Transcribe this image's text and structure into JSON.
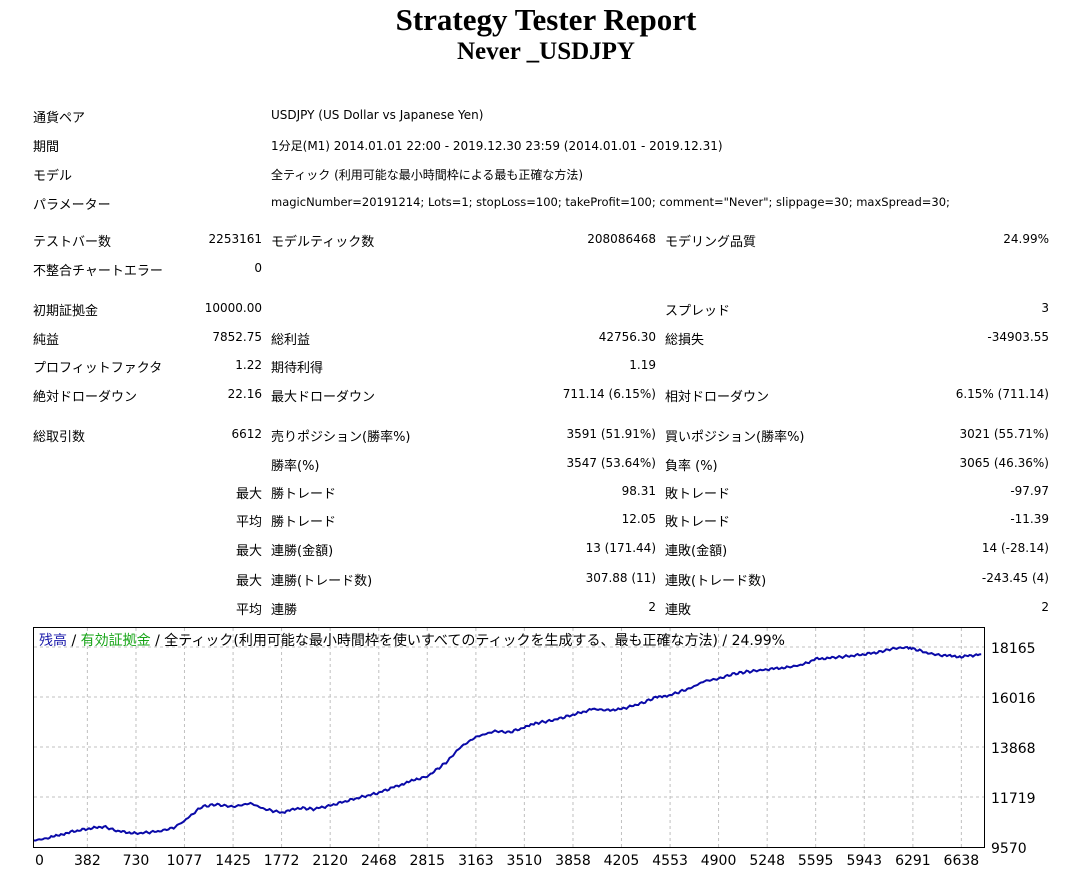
{
  "report": {
    "title": "Strategy Tester Report",
    "subtitle": "Never _USDJPY"
  },
  "info": {
    "symbol_label": "通貨ペア",
    "symbol_value": "USDJPY (US Dollar vs Japanese Yen)",
    "period_label": "期間",
    "period_value": "1分足(M1) 2014.01.01 22:00 - 2019.12.30 23:59 (2014.01.01 - 2019.12.31)",
    "model_label": "モデル",
    "model_value": "全ティック (利用可能な最小時間枠による最も正確な方法)",
    "params_label": "パラメーター",
    "params_value": "magicNumber=20191214; Lots=1; stopLoss=100; takeProfit=100; comment=\"Never\"; slippage=30; maxSpread=30;"
  },
  "stats": {
    "bars_label": "テストバー数",
    "bars_value": "2253161",
    "ticks_label": "モデルティック数",
    "ticks_value": "208086468",
    "quality_label": "モデリング品質",
    "quality_value": "24.99%",
    "mismatch_label": "不整合チャートエラー",
    "mismatch_value": "0",
    "deposit_label": "初期証拠金",
    "deposit_value": "10000.00",
    "spread_label": "スプレッド",
    "spread_value": "3",
    "netprofit_label": "純益",
    "netprofit_value": "7852.75",
    "grossprofit_label": "総利益",
    "grossprofit_value": "42756.30",
    "grossloss_label": "総損失",
    "grossloss_value": "-34903.55",
    "pf_label": "プロフィットファクタ",
    "pf_value": "1.22",
    "payoff_label": "期待利得",
    "payoff_value": "1.19",
    "absdd_label": "絶対ドローダウン",
    "absdd_value": "22.16",
    "maxdd_label": "最大ドローダウン",
    "maxdd_value": "711.14 (6.15%)",
    "reldd_label": "相対ドローダウン",
    "reldd_value": "6.15% (711.14)",
    "trades_label": "総取引数",
    "trades_value": "6612",
    "short_label": "売りポジション(勝率%)",
    "short_value": "3591 (51.91%)",
    "long_label": "買いポジション(勝率%)",
    "long_value": "3021 (55.71%)",
    "winrate_label": "勝率(%)",
    "winrate_value": "3547 (53.64%)",
    "lossrate_label": "負率 (%)",
    "lossrate_value": "3065 (46.36%)",
    "max_label": "最大",
    "avg_label": "平均",
    "largest_win_label": "勝トレード",
    "largest_win_value": "98.31",
    "largest_loss_label": "敗トレード",
    "largest_loss_value": "-97.97",
    "avg_win_label": "勝トレード",
    "avg_win_value": "12.05",
    "avg_loss_label": "敗トレード",
    "avg_loss_value": "-11.39",
    "maxconswin_amt_label": "連勝(金額)",
    "maxconswin_amt_value": "13 (171.44)",
    "maxconsloss_amt_label": "連敗(金額)",
    "maxconsloss_amt_value": "14 (-28.14)",
    "maxconswin_cnt_label": "連勝(トレード数)",
    "maxconswin_cnt_value": "307.88 (11)",
    "maxconsloss_cnt_label": "連敗(トレード数)",
    "maxconsloss_cnt_value": "-243.45 (4)",
    "avgconswin_label": "連勝",
    "avgconswin_value": "2",
    "avgconsloss_label": "連敗",
    "avgconsloss_value": "2"
  },
  "legend": {
    "balance": "残高",
    "sep1": " / ",
    "equity": "有効証拠金",
    "sep2": " / ",
    "rest": "全ティック(利用可能な最小時間枠を使いすべてのティックを生成する、最も正確な方法) / 24.99%"
  },
  "colors": {
    "balance": "#1a1aaa",
    "equity": "#17a517",
    "grid": "#c0c0c0",
    "line": "#0a0aa8"
  },
  "chart_data": {
    "type": "line",
    "title": "",
    "xlabel": "",
    "ylabel": "",
    "x_ticks": [
      0,
      382,
      730,
      1077,
      1425,
      1772,
      2120,
      2468,
      2815,
      3163,
      3510,
      3858,
      4205,
      4553,
      4900,
      5248,
      5595,
      5943,
      6291,
      6638
    ],
    "y_ticks": [
      9570,
      11719,
      13868,
      16016,
      18165
    ],
    "xlim": [
      0,
      6800
    ],
    "ylim": [
      9570,
      18165
    ],
    "grid": true,
    "series": [
      {
        "values": [
          [
            0,
            9850
          ],
          [
            100,
            9950
          ],
          [
            250,
            10200
          ],
          [
            382,
            10350
          ],
          [
            500,
            10450
          ],
          [
            600,
            10250
          ],
          [
            730,
            10150
          ],
          [
            900,
            10250
          ],
          [
            1000,
            10400
          ],
          [
            1077,
            10700
          ],
          [
            1200,
            11300
          ],
          [
            1300,
            11400
          ],
          [
            1425,
            11300
          ],
          [
            1550,
            11450
          ],
          [
            1650,
            11200
          ],
          [
            1772,
            11050
          ],
          [
            1900,
            11250
          ],
          [
            2000,
            11200
          ],
          [
            2120,
            11350
          ],
          [
            2300,
            11650
          ],
          [
            2468,
            11900
          ],
          [
            2600,
            12200
          ],
          [
            2750,
            12500
          ],
          [
            2815,
            12600
          ],
          [
            2950,
            13200
          ],
          [
            3050,
            13850
          ],
          [
            3163,
            14300
          ],
          [
            3300,
            14550
          ],
          [
            3400,
            14500
          ],
          [
            3510,
            14700
          ],
          [
            3600,
            14900
          ],
          [
            3700,
            15000
          ],
          [
            3858,
            15250
          ],
          [
            4000,
            15500
          ],
          [
            4100,
            15450
          ],
          [
            4205,
            15500
          ],
          [
            4350,
            15750
          ],
          [
            4450,
            16000
          ],
          [
            4553,
            16100
          ],
          [
            4700,
            16400
          ],
          [
            4800,
            16700
          ],
          [
            4900,
            16800
          ],
          [
            5000,
            17000
          ],
          [
            5100,
            17100
          ],
          [
            5248,
            17200
          ],
          [
            5400,
            17300
          ],
          [
            5500,
            17400
          ],
          [
            5595,
            17650
          ],
          [
            5700,
            17700
          ],
          [
            5800,
            17750
          ],
          [
            5943,
            17850
          ],
          [
            6050,
            17950
          ],
          [
            6150,
            18100
          ],
          [
            6250,
            18150
          ],
          [
            6291,
            18100
          ],
          [
            6400,
            17900
          ],
          [
            6500,
            17800
          ],
          [
            6638,
            17750
          ],
          [
            6780,
            17850
          ]
        ]
      }
    ]
  }
}
